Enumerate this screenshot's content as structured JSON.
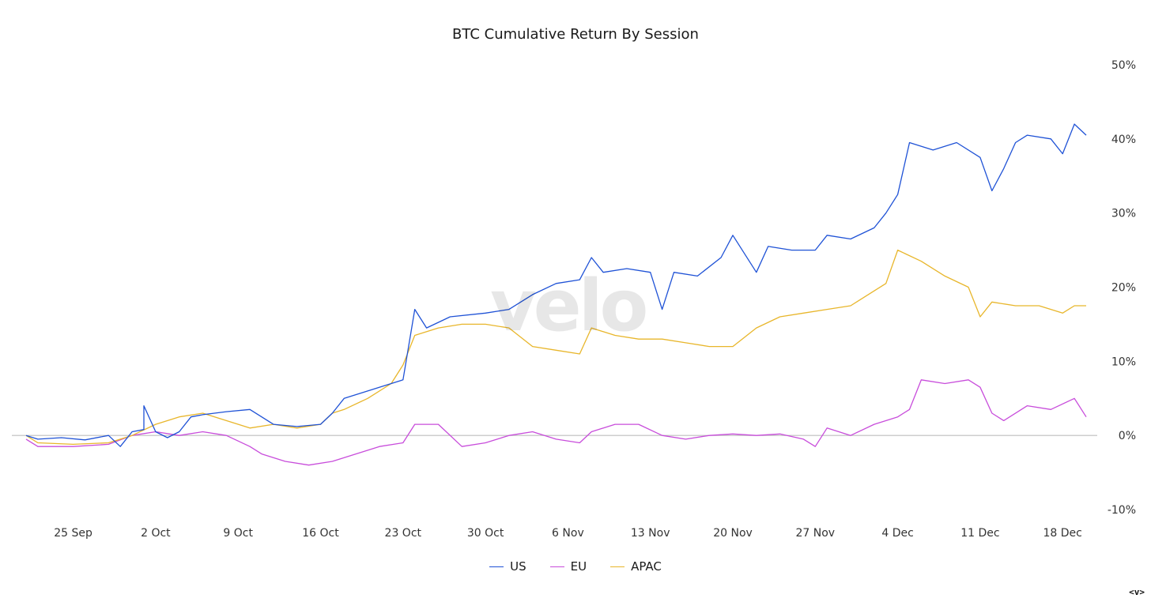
{
  "chart_data": {
    "type": "line",
    "title": "BTC Cumulative Return By Session",
    "xlabel": "",
    "ylabel": "",
    "x_ticks": [
      "25 Sep",
      "2 Oct",
      "9 Oct",
      "16 Oct",
      "23 Oct",
      "30 Oct",
      "6 Nov",
      "13 Nov",
      "20 Nov",
      "27 Nov",
      "4 Dec",
      "11 Dec",
      "18 Dec"
    ],
    "y_ticks": [
      "-10%",
      "0%",
      "10%",
      "20%",
      "30%",
      "40%",
      "50%"
    ],
    "ylim": [
      -10,
      50
    ],
    "xlim": [
      "2023-09-21",
      "2023-12-20"
    ],
    "y_unit": "%",
    "grid": false,
    "zero_line": true,
    "legend_position": "bottom-center",
    "series": [
      {
        "name": "US",
        "color": "#1f52d6",
        "points": [
          [
            "2023-09-21",
            0
          ],
          [
            "2023-09-22",
            -0.5
          ],
          [
            "2023-09-24",
            -0.3
          ],
          [
            "2023-09-26",
            -0.6
          ],
          [
            "2023-09-28",
            0
          ],
          [
            "2023-09-29",
            -1.5
          ],
          [
            "2023-09-30",
            0.5
          ],
          [
            "2023-10-01",
            0.8
          ],
          [
            "2023-10-01",
            4
          ],
          [
            "2023-10-02",
            0.5
          ],
          [
            "2023-10-03",
            -0.3
          ],
          [
            "2023-10-04",
            0.5
          ],
          [
            "2023-10-05",
            2.5
          ],
          [
            "2023-10-06",
            2.8
          ],
          [
            "2023-10-08",
            3.2
          ],
          [
            "2023-10-10",
            3.5
          ],
          [
            "2023-10-12",
            1.5
          ],
          [
            "2023-10-14",
            1.2
          ],
          [
            "2023-10-16",
            1.5
          ],
          [
            "2023-10-17",
            3
          ],
          [
            "2023-10-18",
            5
          ],
          [
            "2023-10-20",
            6
          ],
          [
            "2023-10-22",
            7
          ],
          [
            "2023-10-23",
            7.5
          ],
          [
            "2023-10-24",
            17
          ],
          [
            "2023-10-25",
            14.5
          ],
          [
            "2023-10-27",
            16
          ],
          [
            "2023-10-30",
            16.5
          ],
          [
            "2023-11-01",
            17
          ],
          [
            "2023-11-03",
            19
          ],
          [
            "2023-11-05",
            20.5
          ],
          [
            "2023-11-07",
            21
          ],
          [
            "2023-11-08",
            24
          ],
          [
            "2023-11-09",
            22
          ],
          [
            "2023-11-11",
            22.5
          ],
          [
            "2023-11-13",
            22
          ],
          [
            "2023-11-14",
            17
          ],
          [
            "2023-11-15",
            22
          ],
          [
            "2023-11-17",
            21.5
          ],
          [
            "2023-11-19",
            24
          ],
          [
            "2023-11-20",
            27
          ],
          [
            "2023-11-22",
            22
          ],
          [
            "2023-11-23",
            25.5
          ],
          [
            "2023-11-25",
            25
          ],
          [
            "2023-11-27",
            25
          ],
          [
            "2023-11-28",
            27
          ],
          [
            "2023-11-30",
            26.5
          ],
          [
            "2023-12-02",
            28
          ],
          [
            "2023-12-03",
            30
          ],
          [
            "2023-12-04",
            32.5
          ],
          [
            "2023-12-05",
            39.5
          ],
          [
            "2023-12-07",
            38.5
          ],
          [
            "2023-12-09",
            39.5
          ],
          [
            "2023-12-11",
            37.5
          ],
          [
            "2023-12-12",
            33
          ],
          [
            "2023-12-13",
            36
          ],
          [
            "2023-12-14",
            39.5
          ],
          [
            "2023-12-15",
            40.5
          ],
          [
            "2023-12-17",
            40
          ],
          [
            "2023-12-18",
            38
          ],
          [
            "2023-12-19",
            42
          ],
          [
            "2023-12-20",
            40.5
          ]
        ]
      },
      {
        "name": "EU",
        "color": "#c84ddb",
        "points": [
          [
            "2023-09-21",
            -0.5
          ],
          [
            "2023-09-22",
            -1.5
          ],
          [
            "2023-09-25",
            -1.5
          ],
          [
            "2023-09-28",
            -1.2
          ],
          [
            "2023-09-30",
            0
          ],
          [
            "2023-10-02",
            0.5
          ],
          [
            "2023-10-04",
            0
          ],
          [
            "2023-10-06",
            0.5
          ],
          [
            "2023-10-08",
            0
          ],
          [
            "2023-10-10",
            -1.5
          ],
          [
            "2023-10-11",
            -2.5
          ],
          [
            "2023-10-13",
            -3.5
          ],
          [
            "2023-10-15",
            -4
          ],
          [
            "2023-10-17",
            -3.5
          ],
          [
            "2023-10-19",
            -2.5
          ],
          [
            "2023-10-21",
            -1.5
          ],
          [
            "2023-10-23",
            -1
          ],
          [
            "2023-10-24",
            1.5
          ],
          [
            "2023-10-26",
            1.5
          ],
          [
            "2023-10-28",
            -1.5
          ],
          [
            "2023-10-30",
            -1
          ],
          [
            "2023-11-01",
            0
          ],
          [
            "2023-11-03",
            0.5
          ],
          [
            "2023-11-05",
            -0.5
          ],
          [
            "2023-11-07",
            -1
          ],
          [
            "2023-11-08",
            0.5
          ],
          [
            "2023-11-10",
            1.5
          ],
          [
            "2023-11-12",
            1.5
          ],
          [
            "2023-11-14",
            0
          ],
          [
            "2023-11-16",
            -0.5
          ],
          [
            "2023-11-18",
            0
          ],
          [
            "2023-11-20",
            0.2
          ],
          [
            "2023-11-22",
            0
          ],
          [
            "2023-11-24",
            0.2
          ],
          [
            "2023-11-26",
            -0.5
          ],
          [
            "2023-11-27",
            -1.5
          ],
          [
            "2023-11-28",
            1
          ],
          [
            "2023-11-30",
            0
          ],
          [
            "2023-12-02",
            1.5
          ],
          [
            "2023-12-04",
            2.5
          ],
          [
            "2023-12-05",
            3.5
          ],
          [
            "2023-12-06",
            7.5
          ],
          [
            "2023-12-08",
            7
          ],
          [
            "2023-12-10",
            7.5
          ],
          [
            "2023-12-11",
            6.5
          ],
          [
            "2023-12-12",
            3
          ],
          [
            "2023-12-13",
            2
          ],
          [
            "2023-12-15",
            4
          ],
          [
            "2023-12-17",
            3.5
          ],
          [
            "2023-12-19",
            5
          ],
          [
            "2023-12-20",
            2.5
          ]
        ]
      },
      {
        "name": "APAC",
        "color": "#e8b62b",
        "points": [
          [
            "2023-09-21",
            0
          ],
          [
            "2023-09-22",
            -1
          ],
          [
            "2023-09-25",
            -1.2
          ],
          [
            "2023-09-28",
            -1
          ],
          [
            "2023-09-30",
            0
          ],
          [
            "2023-10-02",
            1.5
          ],
          [
            "2023-10-04",
            2.5
          ],
          [
            "2023-10-06",
            3
          ],
          [
            "2023-10-08",
            2
          ],
          [
            "2023-10-10",
            1
          ],
          [
            "2023-10-12",
            1.5
          ],
          [
            "2023-10-14",
            1
          ],
          [
            "2023-10-16",
            1.5
          ],
          [
            "2023-10-17",
            3
          ],
          [
            "2023-10-18",
            3.5
          ],
          [
            "2023-10-20",
            5
          ],
          [
            "2023-10-22",
            7
          ],
          [
            "2023-10-23",
            9.5
          ],
          [
            "2023-10-24",
            13.5
          ],
          [
            "2023-10-26",
            14.5
          ],
          [
            "2023-10-28",
            15
          ],
          [
            "2023-10-30",
            15
          ],
          [
            "2023-11-01",
            14.5
          ],
          [
            "2023-11-03",
            12
          ],
          [
            "2023-11-05",
            11.5
          ],
          [
            "2023-11-07",
            11
          ],
          [
            "2023-11-08",
            14.5
          ],
          [
            "2023-11-10",
            13.5
          ],
          [
            "2023-11-12",
            13
          ],
          [
            "2023-11-14",
            13
          ],
          [
            "2023-11-16",
            12.5
          ],
          [
            "2023-11-18",
            12
          ],
          [
            "2023-11-20",
            12
          ],
          [
            "2023-11-22",
            14.5
          ],
          [
            "2023-11-24",
            16
          ],
          [
            "2023-11-26",
            16.5
          ],
          [
            "2023-11-28",
            17
          ],
          [
            "2023-11-30",
            17.5
          ],
          [
            "2023-12-02",
            19.5
          ],
          [
            "2023-12-03",
            20.5
          ],
          [
            "2023-12-04",
            25
          ],
          [
            "2023-12-06",
            23.5
          ],
          [
            "2023-12-08",
            21.5
          ],
          [
            "2023-12-10",
            20
          ],
          [
            "2023-12-11",
            16
          ],
          [
            "2023-12-12",
            18
          ],
          [
            "2023-12-14",
            17.5
          ],
          [
            "2023-12-16",
            17.5
          ],
          [
            "2023-12-18",
            16.5
          ],
          [
            "2023-12-19",
            17.5
          ],
          [
            "2023-12-20",
            17.5
          ]
        ]
      }
    ]
  },
  "watermark": "velo",
  "corner_mark": "<v>"
}
